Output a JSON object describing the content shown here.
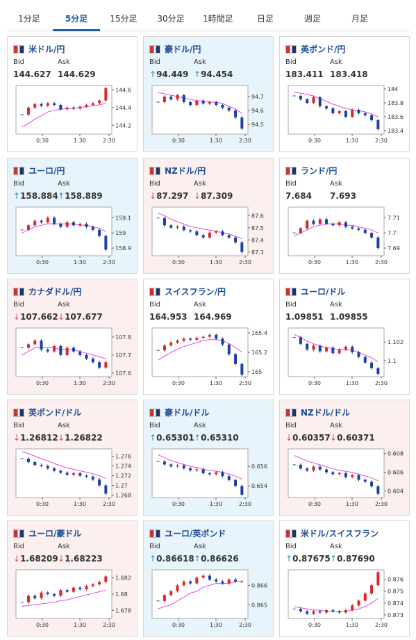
{
  "tabs": [
    "1分足",
    "5分足",
    "15分足",
    "30分足",
    "1時間足",
    "日足",
    "週足",
    "月足"
  ],
  "active_tab": 1,
  "bid_label": "Bid",
  "ask_label": "Ask",
  "time_labels": [
    "0:30",
    "1:30",
    "2:30"
  ],
  "up_color": "#d9272e",
  "down_color": "#1c3fa8",
  "ma_color": "#e04be0",
  "pairs": [
    {
      "name": "米ドル/円",
      "bid": "144.627",
      "ask": "144.629",
      "direction": null,
      "background": "#ffffff",
      "chart": {
        "ylim": [
          144.1,
          144.65
        ],
        "yticks": [
          144.2,
          144.4,
          144.6
        ],
        "closes": [
          144.32,
          144.4,
          144.44,
          144.42,
          144.45,
          144.43,
          144.38,
          144.4,
          144.39,
          144.41,
          144.43,
          144.45,
          144.48,
          144.62
        ],
        "ma": [
          144.18,
          144.22,
          144.27,
          144.31,
          144.35,
          144.37,
          144.38,
          144.39,
          144.39,
          144.4,
          144.41,
          144.42,
          144.43,
          144.45
        ]
      }
    },
    {
      "name": "豪ドル/円",
      "bid": "94.449",
      "ask": "94.454",
      "direction": "up",
      "background": "#e8f4fc",
      "chart": {
        "ylim": [
          94.43,
          94.78
        ],
        "yticks": [
          94.5,
          94.6,
          94.7
        ],
        "closes": [
          94.66,
          94.7,
          94.68,
          94.71,
          94.66,
          94.64,
          94.67,
          94.65,
          94.66,
          94.64,
          94.62,
          94.6,
          94.55,
          94.47
        ],
        "ma": [
          94.73,
          94.72,
          94.71,
          94.7,
          94.69,
          94.68,
          94.67,
          94.67,
          94.66,
          94.66,
          94.65,
          94.63,
          94.61,
          94.58
        ]
      }
    },
    {
      "name": "英ポンド/円",
      "bid": "183.411",
      "ask": "183.418",
      "direction": null,
      "background": "#ffffff",
      "chart": {
        "ylim": [
          183.35,
          184.05
        ],
        "yticks": [
          183.4,
          183.6,
          183.8,
          184
        ],
        "closes": [
          183.9,
          183.85,
          183.8,
          183.88,
          183.75,
          183.72,
          183.65,
          183.68,
          183.6,
          183.7,
          183.65,
          183.62,
          183.55,
          183.42
        ],
        "ma": [
          183.95,
          183.94,
          183.92,
          183.9,
          183.86,
          183.82,
          183.78,
          183.75,
          183.72,
          183.7,
          183.69,
          183.67,
          183.64,
          183.6
        ]
      }
    },
    {
      "name": "ユーロ/円",
      "bid": "158.884",
      "ask": "158.889",
      "direction": "up",
      "background": "#e8f4fc",
      "chart": {
        "ylim": [
          158.85,
          159.17
        ],
        "yticks": [
          158.9,
          159,
          159.1
        ],
        "closes": [
          159.02,
          159.05,
          159.08,
          159.07,
          159.1,
          159.06,
          159.04,
          159.07,
          159.05,
          159.06,
          159.04,
          159.02,
          158.98,
          158.89
        ],
        "ma": [
          159,
          159.02,
          159.04,
          159.05,
          159.06,
          159.06,
          159.06,
          159.06,
          159.06,
          159.05,
          159.05,
          159.04,
          159.03,
          159.01
        ]
      }
    },
    {
      "name": "NZドル/円",
      "bid": "87.297",
      "ask": "87.309",
      "direction": "down",
      "background": "#fcefef",
      "chart": {
        "ylim": [
          87.27,
          87.67
        ],
        "yticks": [
          87.3,
          87.4,
          87.5,
          87.6
        ],
        "closes": [
          87.58,
          87.52,
          87.5,
          87.51,
          87.48,
          87.47,
          87.44,
          87.42,
          87.46,
          87.47,
          87.44,
          87.42,
          87.38,
          87.3
        ],
        "ma": [
          87.62,
          87.6,
          87.57,
          87.55,
          87.53,
          87.51,
          87.5,
          87.49,
          87.48,
          87.47,
          87.46,
          87.45,
          87.43,
          87.41
        ]
      }
    },
    {
      "name": "ランド/円",
      "bid": "7.684",
      "ask": "7.693",
      "direction": null,
      "background": "#ffffff",
      "chart": {
        "ylim": [
          7.685,
          7.717
        ],
        "yticks": [
          7.69,
          7.7,
          7.71
        ],
        "closes": [
          7.7,
          7.703,
          7.708,
          7.706,
          7.709,
          7.706,
          7.705,
          7.707,
          7.704,
          7.703,
          7.702,
          7.7,
          7.697,
          7.69
        ],
        "ma": [
          7.698,
          7.7,
          7.702,
          7.704,
          7.705,
          7.706,
          7.706,
          7.706,
          7.705,
          7.705,
          7.704,
          7.703,
          7.702,
          7.7
        ]
      }
    },
    {
      "name": "カナダドル/円",
      "bid": "107.662",
      "ask": "107.677",
      "direction": "down",
      "background": "#fcefef",
      "chart": {
        "ylim": [
          107.58,
          107.85
        ],
        "yticks": [
          107.6,
          107.7,
          107.8
        ],
        "closes": [
          107.74,
          107.76,
          107.78,
          107.73,
          107.72,
          107.75,
          107.7,
          107.74,
          107.72,
          107.7,
          107.68,
          107.66,
          107.63,
          107.66
        ],
        "ma": [
          107.7,
          107.72,
          107.74,
          107.74,
          107.74,
          107.74,
          107.73,
          107.73,
          107.73,
          107.72,
          107.71,
          107.7,
          107.69,
          107.68
        ]
      }
    },
    {
      "name": "スイスフラン/円",
      "bid": "164.953",
      "ask": "164.969",
      "direction": null,
      "background": "#ffffff",
      "chart": {
        "ylim": [
          164.95,
          165.45
        ],
        "yticks": [
          165,
          165.2,
          165.4
        ],
        "closes": [
          165.22,
          165.27,
          165.3,
          165.32,
          165.34,
          165.33,
          165.35,
          165.36,
          165.38,
          165.34,
          165.28,
          165.18,
          165.08,
          164.97
        ],
        "ma": [
          165.12,
          165.16,
          165.2,
          165.23,
          165.26,
          165.28,
          165.3,
          165.32,
          165.33,
          165.33,
          165.32,
          165.29,
          165.25,
          165.2
        ]
      }
    },
    {
      "name": "ユーロ/ドル",
      "bid": "1.09851",
      "ask": "1.09855",
      "direction": null,
      "background": "#ffffff",
      "chart": {
        "ylim": [
          1.0983,
          1.1035
        ],
        "yticks": [
          1.1,
          1.102
        ],
        "closes": [
          1.1025,
          1.1018,
          1.1012,
          1.1016,
          1.101,
          1.1014,
          1.1008,
          1.1012,
          1.1015,
          1.1009,
          1.1004,
          1.0998,
          1.0992,
          1.0986
        ],
        "ma": [
          1.1028,
          1.1025,
          1.1021,
          1.1018,
          1.1016,
          1.1014,
          1.1013,
          1.1012,
          1.1012,
          1.1011,
          1.1009,
          1.1006,
          1.1003,
          1.0999
        ]
      }
    },
    {
      "name": "英ポンド/ドル",
      "bid": "1.26812",
      "ask": "1.26822",
      "direction": "down",
      "background": "#fcefef",
      "chart": {
        "ylim": [
          1.2675,
          1.2775
        ],
        "yticks": [
          1.268,
          1.27,
          1.272,
          1.274,
          1.276
        ],
        "closes": [
          1.2755,
          1.2748,
          1.2742,
          1.274,
          1.2735,
          1.273,
          1.2726,
          1.2722,
          1.2725,
          1.272,
          1.2718,
          1.2712,
          1.27,
          1.2683
        ],
        "ma": [
          1.277,
          1.2765,
          1.276,
          1.2755,
          1.275,
          1.2745,
          1.274,
          1.2736,
          1.2733,
          1.273,
          1.2727,
          1.2724,
          1.272,
          1.2714
        ]
      }
    },
    {
      "name": "豪ドル/ドル",
      "bid": "0.65301",
      "ask": "0.65310",
      "direction": "up",
      "background": "#e8f4fc",
      "chart": {
        "ylim": [
          0.6528,
          0.6578
        ],
        "yticks": [
          0.654,
          0.656
        ],
        "closes": [
          0.6565,
          0.6562,
          0.656,
          0.6561,
          0.6558,
          0.6556,
          0.6557,
          0.6553,
          0.6552,
          0.6554,
          0.655,
          0.6546,
          0.654,
          0.6531
        ],
        "ma": [
          0.6572,
          0.6569,
          0.6566,
          0.6564,
          0.6562,
          0.656,
          0.6559,
          0.6557,
          0.6556,
          0.6555,
          0.6554,
          0.6552,
          0.655,
          0.6547
        ]
      }
    },
    {
      "name": "NZドル/ドル",
      "bid": "0.60357",
      "ask": "0.60371",
      "direction": "down",
      "background": "#fcefef",
      "chart": {
        "ylim": [
          0.6033,
          0.6085
        ],
        "yticks": [
          0.604,
          0.606,
          0.608
        ],
        "closes": [
          0.6068,
          0.6064,
          0.6062,
          0.6066,
          0.6063,
          0.606,
          0.6058,
          0.6059,
          0.6055,
          0.6057,
          0.6052,
          0.605,
          0.6045,
          0.6037
        ],
        "ma": [
          0.6078,
          0.6075,
          0.6072,
          0.607,
          0.6068,
          0.6066,
          0.6064,
          0.6062,
          0.6061,
          0.606,
          0.6058,
          0.6056,
          0.6054,
          0.6051
        ]
      }
    },
    {
      "name": "ユーロ/豪ドル",
      "bid": "1.68209",
      "ask": "1.68223",
      "direction": "down",
      "background": "#fcefef",
      "chart": {
        "ylim": [
          1.677,
          1.683
        ],
        "yticks": [
          1.678,
          1.68,
          1.682
        ],
        "closes": [
          1.679,
          1.6798,
          1.6795,
          1.6802,
          1.68,
          1.6798,
          1.6805,
          1.6803,
          1.6808,
          1.6806,
          1.681,
          1.6812,
          1.6815,
          1.6822
        ],
        "ma": [
          1.6785,
          1.6786,
          1.6787,
          1.6788,
          1.6789,
          1.679,
          1.6792,
          1.6793,
          1.6795,
          1.6797,
          1.6799,
          1.6801,
          1.6803,
          1.6805
        ]
      }
    },
    {
      "name": "ユーロ/英ポンド",
      "bid": "0.86618",
      "ask": "0.86626",
      "direction": "up",
      "background": "#e8f4fc",
      "chart": {
        "ylim": [
          0.8643,
          0.8668
        ],
        "yticks": [
          0.865,
          0.866
        ],
        "closes": [
          0.8652,
          0.8655,
          0.8657,
          0.866,
          0.8662,
          0.8661,
          0.8664,
          0.8665,
          0.8663,
          0.8662,
          0.8661,
          0.8663,
          0.8662,
          0.8662
        ],
        "ma": [
          0.8648,
          0.8649,
          0.865,
          0.8652,
          0.8654,
          0.8656,
          0.8657,
          0.8659,
          0.866,
          0.8661,
          0.8661,
          0.8661,
          0.8662,
          0.8662
        ]
      }
    },
    {
      "name": "米ドル/スイスフラン",
      "bid": "0.87675",
      "ask": "0.87690",
      "direction": "up",
      "background": "#ffffff",
      "chart": {
        "ylim": [
          0.8727,
          0.8768
        ],
        "yticks": [
          0.873,
          0.874,
          0.875,
          0.876
        ],
        "closes": [
          0.8735,
          0.8733,
          0.8731,
          0.8733,
          0.8732,
          0.8734,
          0.8733,
          0.8732,
          0.8734,
          0.8738,
          0.8742,
          0.8748,
          0.8755,
          0.8766
        ],
        "ma": [
          0.8737,
          0.8736,
          0.8735,
          0.8734,
          0.8734,
          0.8733,
          0.8733,
          0.8733,
          0.8733,
          0.8734,
          0.8735,
          0.8737,
          0.874,
          0.8744
        ]
      }
    }
  ]
}
